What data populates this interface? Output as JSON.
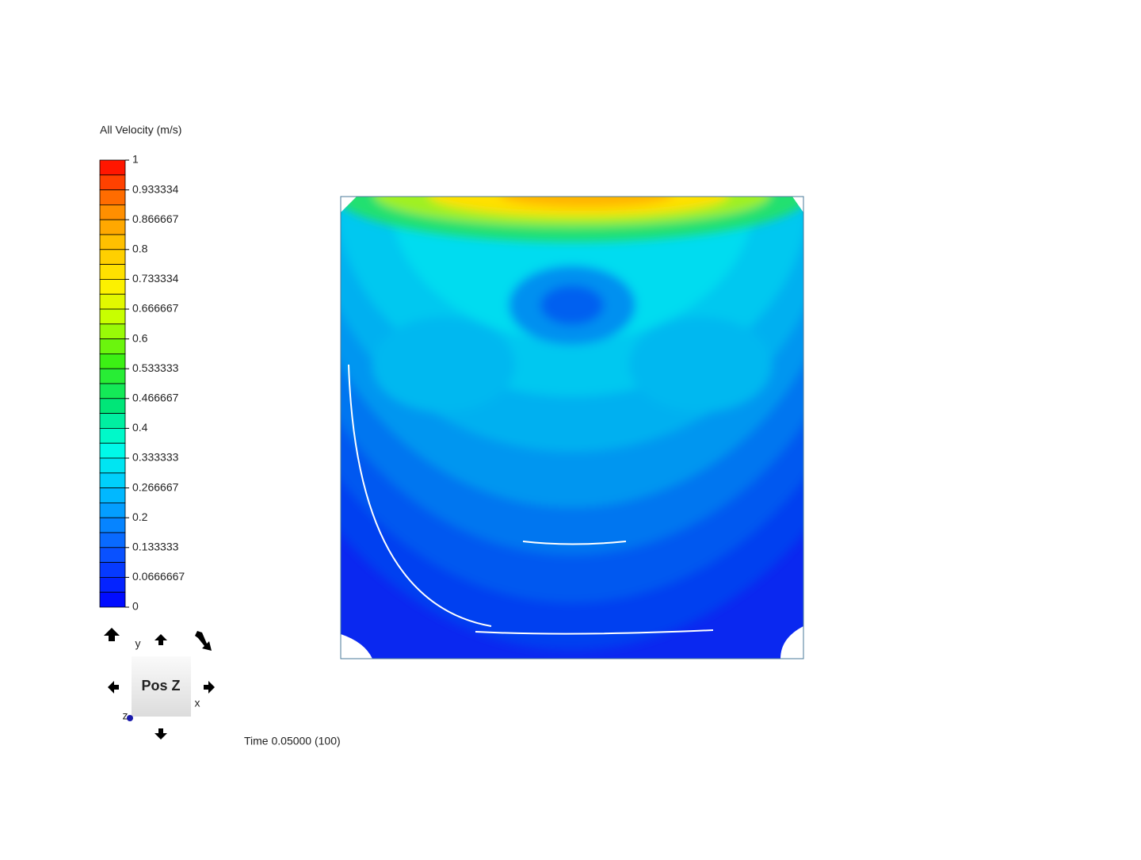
{
  "legend": {
    "title": "All Velocity (m/s)",
    "labels": [
      "1",
      "0.933334",
      "0.866667",
      "0.8",
      "0.733334",
      "0.666667",
      "0.6",
      "0.533333",
      "0.466667",
      "0.4",
      "0.333333",
      "0.266667",
      "0.2",
      "0.133333",
      "0.0666667",
      "0"
    ]
  },
  "navigator": {
    "face": "Pos Z",
    "axis_y": "y",
    "axis_x": "x",
    "axis_z": "z"
  },
  "time": "Time 0.05000 (100)"
}
